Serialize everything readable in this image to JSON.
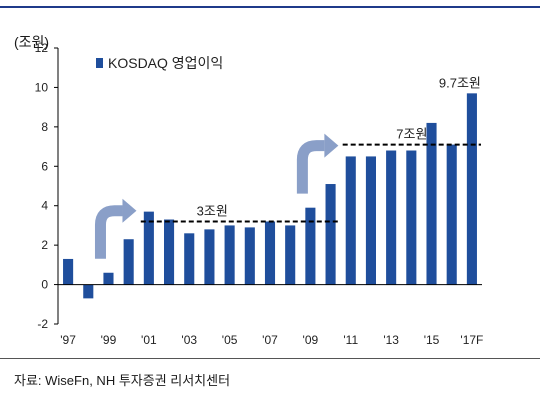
{
  "unit_label": "(조원)",
  "source": "자료: WiseFn, NH 투자증권 리서치센터",
  "colors": {
    "bar": "#1f4e9c",
    "arrow": "#8a9fc8",
    "rule": "#1f3a8a"
  },
  "chart_data": {
    "type": "bar",
    "series": [
      {
        "name": "KOSDAQ 영업이익",
        "values": [
          1.3,
          -0.7,
          0.6,
          2.3,
          3.7,
          3.3,
          2.6,
          2.8,
          3.0,
          2.9,
          3.2,
          3.0,
          3.9,
          5.1,
          6.5,
          6.5,
          6.8,
          6.8,
          8.2,
          7.1,
          9.7
        ]
      }
    ],
    "categories": [
      "'97",
      "'98",
      "'99",
      "'00",
      "'01",
      "'02",
      "'03",
      "'04",
      "'05",
      "'06",
      "'07",
      "'08",
      "'09",
      "'10",
      "'11",
      "'12",
      "'13",
      "'14",
      "'15",
      "'16",
      "'17F"
    ],
    "x_tick_labels": [
      "'97",
      "'99",
      "'01",
      "'03",
      "'05",
      "'07",
      "'09",
      "'11",
      "'13",
      "'15",
      "'17F"
    ],
    "y_ticks": [
      -2,
      0,
      2,
      4,
      6,
      8,
      10,
      12
    ],
    "ylim": [
      -2,
      12
    ],
    "legend": "top-left",
    "reference_lines": [
      {
        "label": "3조원",
        "y": 3.2,
        "from_index": 4,
        "to_index": 13
      },
      {
        "label": "7조원",
        "y": 7.1,
        "from_index": 14,
        "to_index": 20
      }
    ],
    "annotations": [
      {
        "label": "9.7조원",
        "index": 20
      }
    ],
    "arrows": [
      {
        "at_index": 2
      },
      {
        "at_index": 12
      }
    ]
  }
}
